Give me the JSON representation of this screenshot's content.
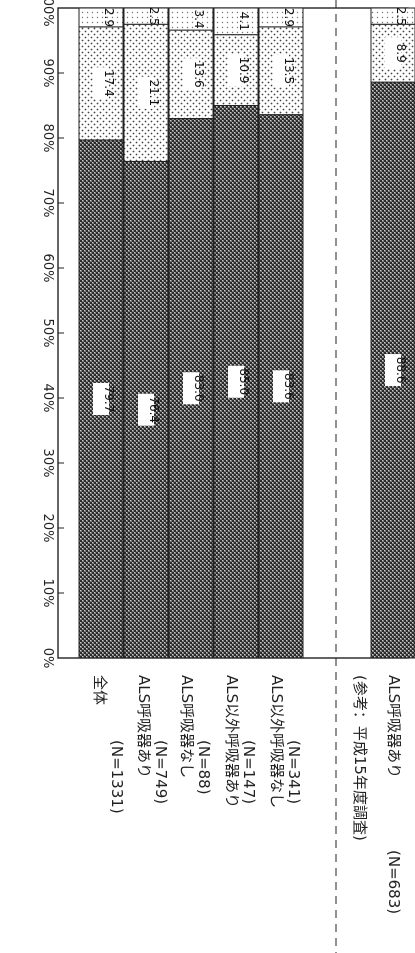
{
  "chart_data": {
    "type": "bar",
    "orientation": "horizontal-stacked-100",
    "rotated_page": true,
    "categories": [
      {
        "label": "全体",
        "n": "(N=1331)"
      },
      {
        "label": "ALS呼吸器あり",
        "n": "(N=749)"
      },
      {
        "label": "ALS呼吸器なし",
        "n": "(N=88)"
      },
      {
        "label": "ALS以外呼吸器あり",
        "n": "(N=147)"
      },
      {
        "label": "ALS以外呼吸器なし",
        "n": "(N=341)"
      },
      {
        "label": "(参考：平成15年度調査)",
        "n": ""
      },
      {
        "label": "ALS呼吸器あり",
        "n": "(N=683)"
      }
    ],
    "bars": [
      {
        "category_index": 0,
        "values": [
          "79.7",
          "17.4",
          "2.9"
        ]
      },
      {
        "category_index": 1,
        "values": [
          "76.4",
          "21.1",
          "2.5"
        ]
      },
      {
        "category_index": 2,
        "values": [
          "83.0",
          "13.6",
          "3.4"
        ]
      },
      {
        "category_index": 3,
        "values": [
          "85.0",
          "10.9",
          "4.1"
        ]
      },
      {
        "category_index": 4,
        "values": [
          "83.6",
          "13.5",
          "2.9"
        ]
      },
      {
        "category_index": 6,
        "values": [
          "88.6",
          "8.9",
          "2.5"
        ]
      }
    ],
    "ticks": [
      "0%",
      "10%",
      "20%",
      "30%",
      "40%",
      "50%",
      "60%",
      "70%",
      "80%",
      "90%",
      "100%"
    ],
    "xlim": [
      0,
      100
    ],
    "grid": false,
    "legend": "none",
    "separator": "dashed line before reference group"
  }
}
